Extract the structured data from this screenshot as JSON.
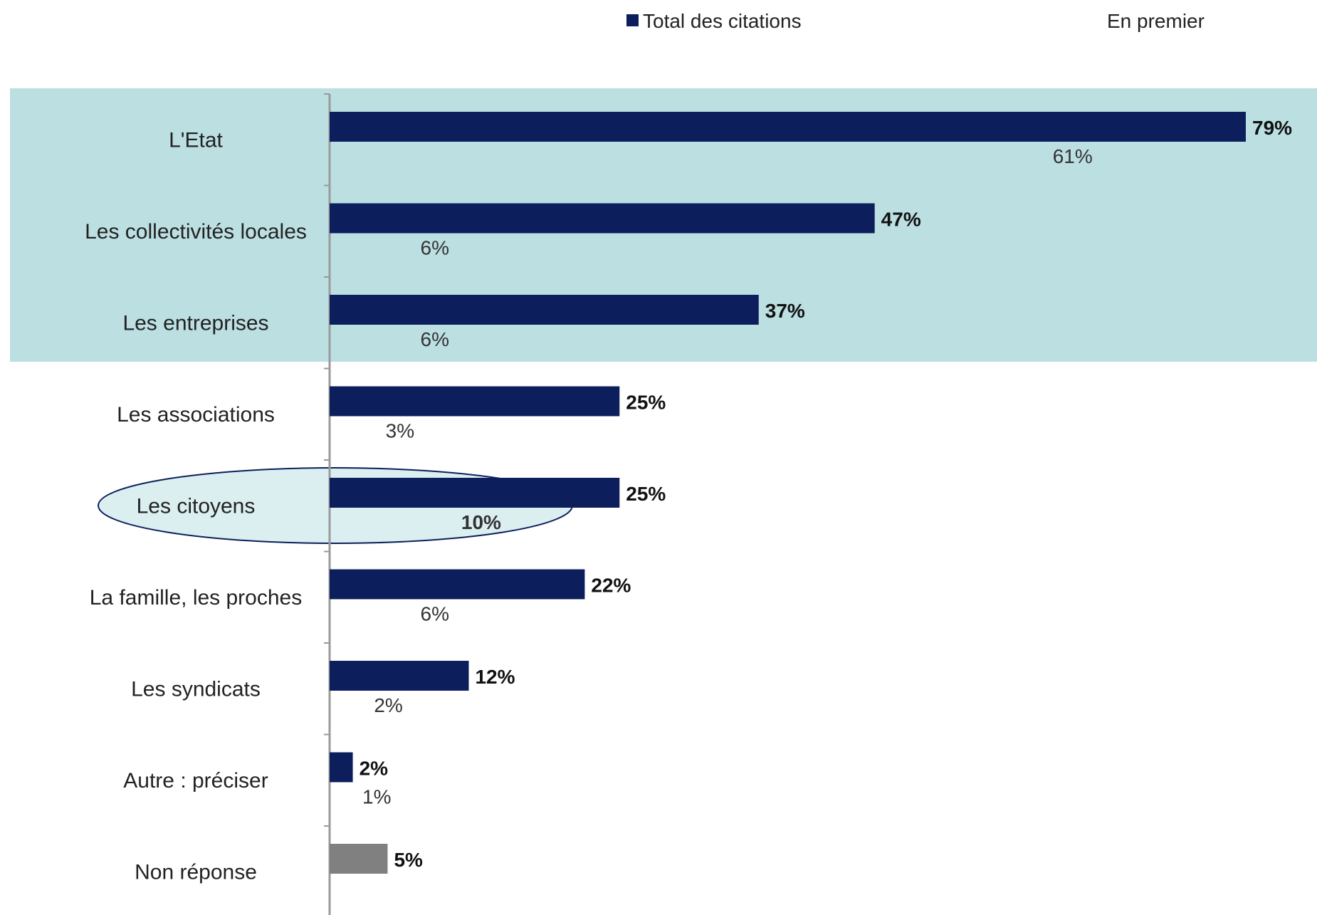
{
  "chart_data": {
    "type": "bar",
    "orientation": "horizontal",
    "legend": {
      "items": [
        {
          "label": "Total des citations",
          "color": "#0c1f5c",
          "swatch": true
        },
        {
          "label": "En premier",
          "swatch": false
        }
      ],
      "placement": "top"
    },
    "categories": [
      "L'Etat",
      "Les collectivités locales",
      "Les entreprises",
      "Les associations",
      "Les citoyens",
      "La famille, les proches",
      "Les syndicats",
      "Autre : préciser",
      "Non réponse"
    ],
    "series": [
      {
        "name": "Total des citations",
        "values": [
          79,
          47,
          37,
          25,
          25,
          22,
          12,
          2,
          5
        ],
        "labels": [
          "79%",
          "47%",
          "37%",
          "25%",
          "25%",
          "22%",
          "12%",
          "2%",
          "5%"
        ],
        "color": "#0c1f5c",
        "special_color": "#808080"
      },
      {
        "name": "En premier",
        "values": [
          61,
          6,
          6,
          3,
          10,
          6,
          2,
          1,
          null
        ],
        "labels": [
          "61%",
          "6%",
          "6%",
          "3%",
          "10%",
          "6%",
          "2%",
          "1%",
          ""
        ]
      }
    ],
    "highlight_band": {
      "from": "L'Etat",
      "to": "Les entreprises",
      "color": "#bcdfe2"
    },
    "highlight_ellipse": {
      "category": "Les citoyens",
      "fill": "#dbeef0",
      "stroke": "#0c1f5c"
    },
    "grid": false,
    "xlim": [
      0,
      79
    ]
  }
}
